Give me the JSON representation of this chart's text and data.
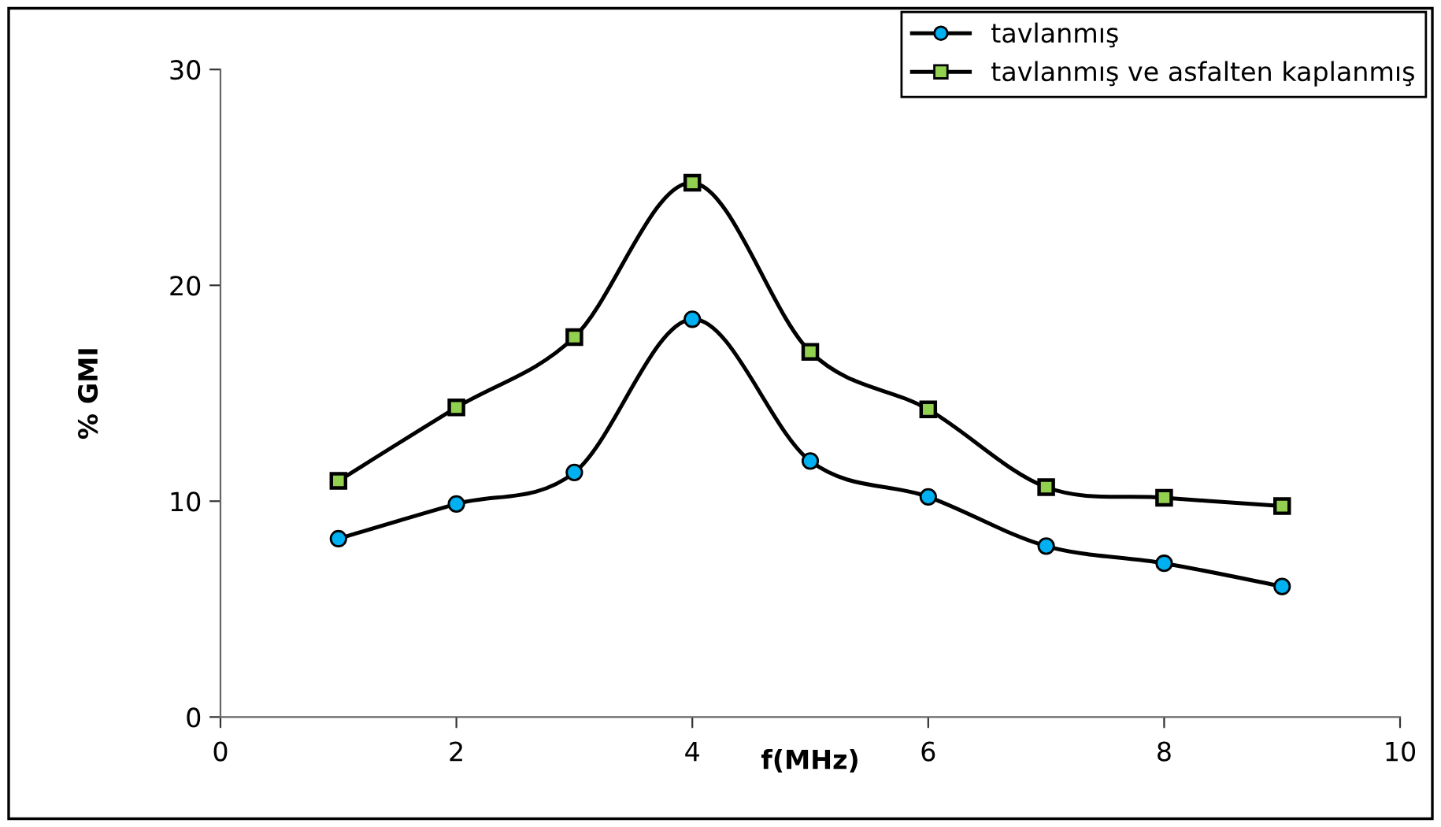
{
  "chart_data": {
    "type": "line",
    "xlabel": "f(MHz)",
    "ylabel": "% GMI",
    "x": [
      1,
      2,
      3,
      4,
      5,
      6,
      7,
      8,
      9
    ],
    "series": [
      {
        "name": "tavlanmış",
        "color": "#00b0f0",
        "marker": "circle",
        "values": [
          8.26,
          9.87,
          11.33,
          18.43,
          11.86,
          10.2,
          7.92,
          7.12,
          6.05
        ]
      },
      {
        "name": "tavlanmış ve asfalten kaplanmış",
        "color": "#92d050",
        "marker": "square",
        "values": [
          10.94,
          14.34,
          17.6,
          24.75,
          16.92,
          14.25,
          10.65,
          10.16,
          9.77
        ]
      }
    ],
    "xlim": [
      0,
      10
    ],
    "xticks": [
      0,
      2,
      4,
      6,
      8,
      10
    ],
    "ylim": [
      0,
      30
    ],
    "yticks": [
      0,
      10,
      20,
      30
    ],
    "grid": false,
    "legend": "top right",
    "line_style": "solid"
  }
}
